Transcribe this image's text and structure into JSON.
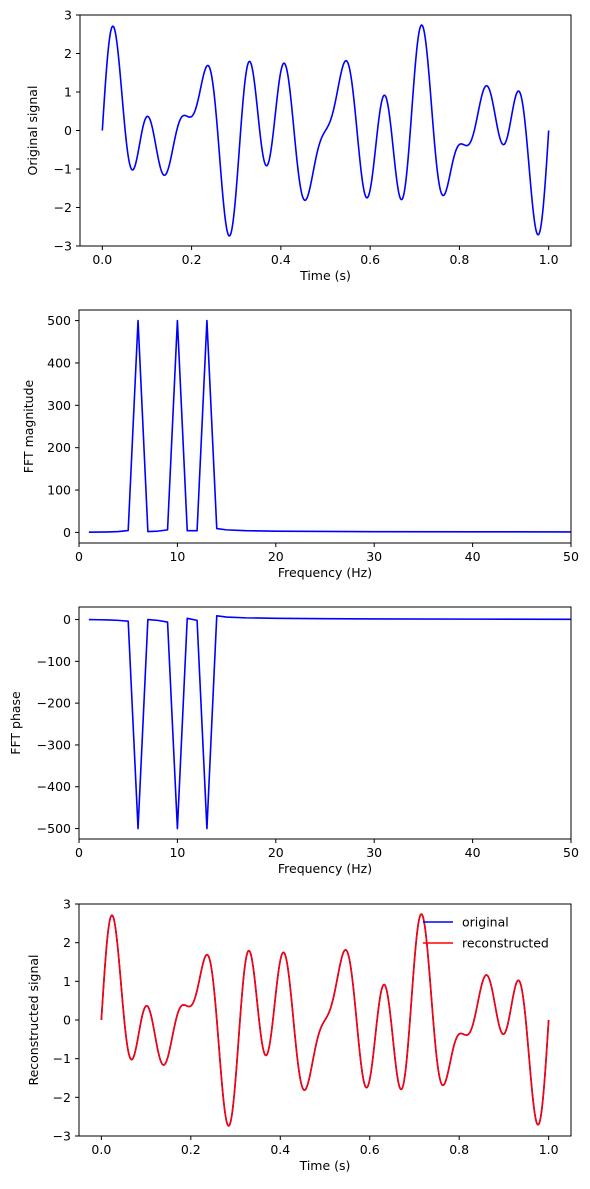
{
  "figure": {
    "background": "#ffffff"
  },
  "chart_data": [
    {
      "id": "original",
      "type": "line",
      "title": "",
      "xlabel": "Time (s)",
      "ylabel": "Original signal",
      "xlim": [
        -0.05,
        1.05
      ],
      "ylim": [
        -3,
        3
      ],
      "xticks": [
        0.0,
        0.2,
        0.4,
        0.6,
        0.8,
        1.0
      ],
      "yticks": [
        -3,
        -2,
        -1,
        0,
        1,
        2,
        3
      ],
      "grid": false,
      "series": [
        {
          "color": "#0000ff",
          "generator": "signal",
          "x_range": [
            0,
            1
          ]
        }
      ]
    },
    {
      "id": "fft-magnitude",
      "type": "line",
      "title": "",
      "xlabel": "Frequency (Hz)",
      "ylabel": "FFT magnitude",
      "xlim": [
        0,
        50
      ],
      "ylim": [
        -25,
        525
      ],
      "xticks": [
        0,
        10,
        20,
        30,
        40,
        50
      ],
      "yticks": [
        0,
        100,
        200,
        300,
        400,
        500
      ],
      "grid": false,
      "series": [
        {
          "color": "#0000ff",
          "x": [
            1,
            2,
            3,
            4,
            5,
            6,
            7,
            8,
            9,
            10,
            11,
            12,
            13,
            14,
            15,
            17,
            20,
            25,
            30,
            40,
            50
          ],
          "y": [
            0.5,
            0.8,
            1.2,
            2,
            4.5,
            500,
            2,
            3,
            6,
            500,
            4,
            4,
            500,
            9,
            6,
            4,
            3,
            2.2,
            1.8,
            1.4,
            1.2
          ]
        }
      ]
    },
    {
      "id": "fft-phase",
      "type": "line",
      "title": "",
      "xlabel": "Frequency (Hz)",
      "ylabel": "FFT phase",
      "xlim": [
        0,
        50
      ],
      "ylim": [
        -525,
        30
      ],
      "xticks": [
        0,
        10,
        20,
        30,
        40,
        50
      ],
      "yticks": [
        0,
        -100,
        -200,
        -300,
        -400,
        -500
      ],
      "grid": false,
      "series": [
        {
          "color": "#0000ff",
          "x": [
            1,
            2,
            3,
            4,
            5,
            6,
            7,
            8,
            9,
            10,
            11,
            12,
            13,
            14,
            15,
            17,
            20,
            25,
            30,
            40,
            50
          ],
          "y": [
            0,
            -0.5,
            -1,
            -2,
            -4,
            -500,
            0,
            -2,
            -6,
            -500,
            3,
            -2,
            -500,
            9,
            6,
            4,
            3,
            2,
            1.5,
            1,
            0.5
          ]
        }
      ]
    },
    {
      "id": "reconstructed",
      "type": "line",
      "title": "",
      "xlabel": "Time (s)",
      "ylabel": "Reconstructed signal",
      "xlim": [
        -0.05,
        1.05
      ],
      "ylim": [
        -3,
        3
      ],
      "xticks": [
        0.0,
        0.2,
        0.4,
        0.6,
        0.8,
        1.0
      ],
      "yticks": [
        -3,
        -2,
        -1,
        0,
        1,
        2,
        3
      ],
      "grid": false,
      "legend": {
        "placement": "top-right",
        "frame": false
      },
      "series": [
        {
          "name": "original",
          "color": "#0000ff",
          "generator": "signal",
          "x_range": [
            0,
            1
          ]
        },
        {
          "name": "reconstructed",
          "color": "#ff0000",
          "generator": "signal",
          "x_range": [
            0,
            1
          ]
        }
      ]
    }
  ]
}
